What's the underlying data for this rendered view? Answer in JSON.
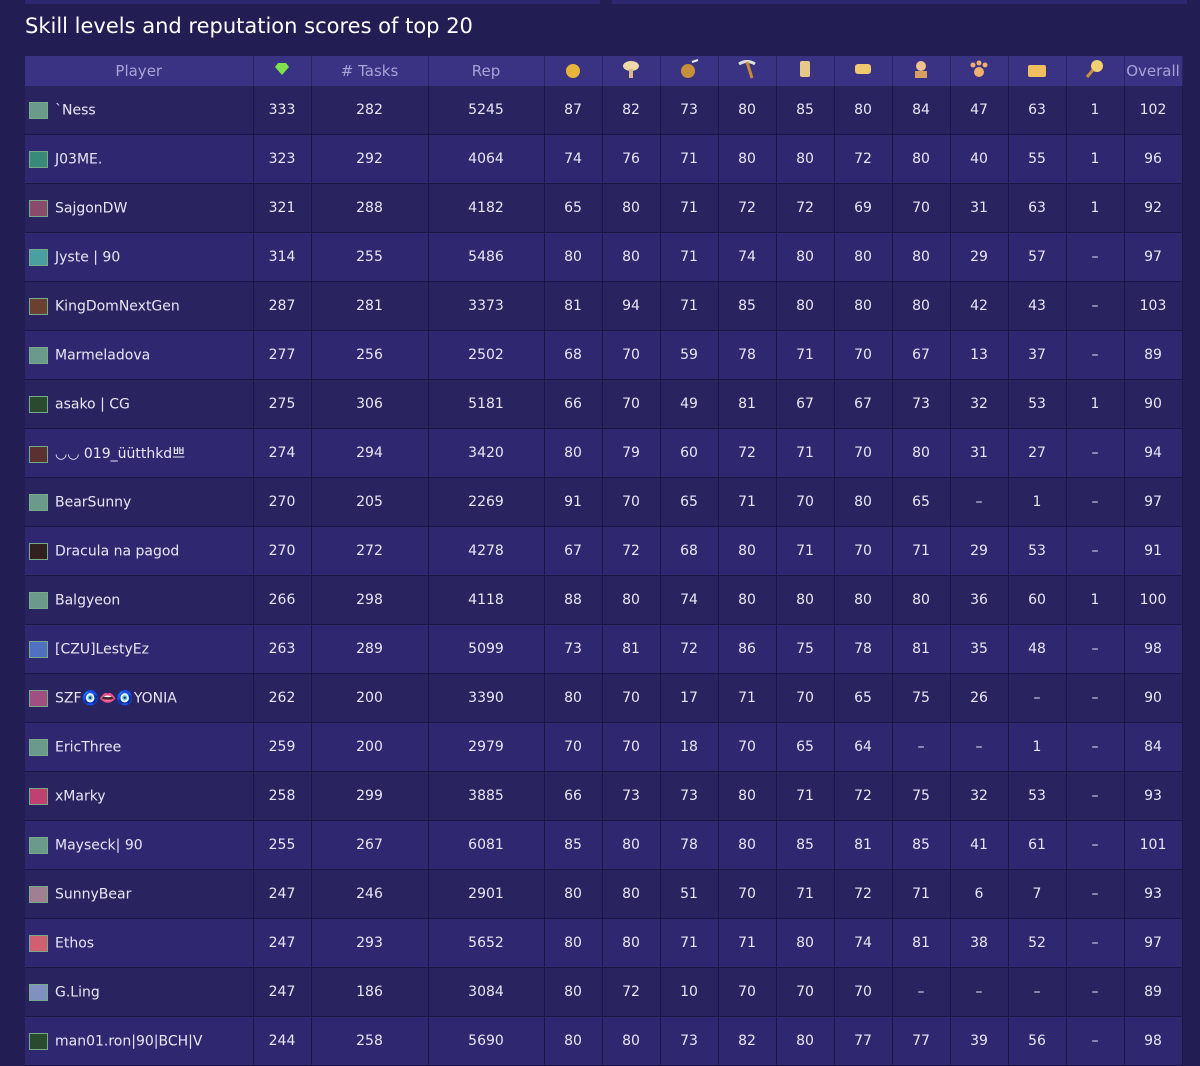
{
  "header": {
    "title": "Skill levels and reputation scores of top 20"
  },
  "table": {
    "columns": {
      "player": "Player",
      "tasks": "# Tasks",
      "rep": "Rep",
      "overall": "Overall"
    },
    "rows": [
      {
        "player": "`Ness",
        "cells": [
          333,
          282,
          5245,
          87,
          82,
          73,
          80,
          85,
          80,
          84,
          47,
          63,
          1,
          102
        ]
      },
      {
        "player": "J03ME.",
        "cells": [
          323,
          292,
          4064,
          74,
          76,
          71,
          80,
          80,
          72,
          80,
          40,
          55,
          1,
          96
        ]
      },
      {
        "player": "SajgonDW",
        "cells": [
          321,
          288,
          4182,
          65,
          80,
          71,
          72,
          72,
          69,
          70,
          31,
          63,
          1,
          92
        ]
      },
      {
        "player": "Jyste | 90",
        "cells": [
          314,
          255,
          5486,
          80,
          80,
          71,
          74,
          80,
          80,
          80,
          29,
          57,
          "–",
          97
        ]
      },
      {
        "player": "KingDomNextGen",
        "cells": [
          287,
          281,
          3373,
          81,
          94,
          71,
          85,
          80,
          80,
          80,
          42,
          43,
          "–",
          103
        ]
      },
      {
        "player": "Marmeladova",
        "cells": [
          277,
          256,
          2502,
          68,
          70,
          59,
          78,
          71,
          70,
          67,
          13,
          37,
          "–",
          89
        ]
      },
      {
        "player": "asako | CG",
        "cells": [
          275,
          306,
          5181,
          66,
          70,
          49,
          81,
          67,
          67,
          73,
          32,
          53,
          1,
          90
        ]
      },
      {
        "player": "◡◡ 019_üütthkd쁘",
        "cells": [
          274,
          294,
          3420,
          80,
          79,
          60,
          72,
          71,
          70,
          80,
          31,
          27,
          "–",
          94
        ]
      },
      {
        "player": "BearSunny",
        "cells": [
          270,
          205,
          2269,
          91,
          70,
          65,
          71,
          70,
          80,
          65,
          "–",
          1,
          "–",
          97
        ]
      },
      {
        "player": "Dracula na pagod",
        "cells": [
          270,
          272,
          4278,
          67,
          72,
          68,
          80,
          71,
          70,
          71,
          29,
          53,
          "–",
          91
        ]
      },
      {
        "player": "Balgyeon",
        "cells": [
          266,
          298,
          4118,
          88,
          80,
          74,
          80,
          80,
          80,
          80,
          36,
          60,
          1,
          100
        ]
      },
      {
        "player": "[CZU]LestyEz",
        "cells": [
          263,
          289,
          5099,
          73,
          81,
          72,
          86,
          75,
          78,
          81,
          35,
          48,
          "–",
          98
        ]
      },
      {
        "player": "SZF🧿👄🧿YONIA",
        "cells": [
          262,
          200,
          3390,
          80,
          70,
          17,
          71,
          70,
          65,
          75,
          26,
          "–",
          "–",
          90
        ]
      },
      {
        "player": "EricThree",
        "cells": [
          259,
          200,
          2979,
          70,
          70,
          18,
          70,
          65,
          64,
          "–",
          "–",
          1,
          "–",
          84
        ]
      },
      {
        "player": "xMarky",
        "cells": [
          258,
          299,
          3885,
          66,
          73,
          73,
          80,
          71,
          72,
          75,
          32,
          53,
          "–",
          93
        ]
      },
      {
        "player": "Mayseck| 90",
        "cells": [
          255,
          267,
          6081,
          85,
          80,
          78,
          80,
          85,
          81,
          85,
          41,
          61,
          "–",
          101
        ]
      },
      {
        "player": "SunnyBear",
        "cells": [
          247,
          246,
          2901,
          80,
          80,
          51,
          70,
          71,
          72,
          71,
          6,
          7,
          "–",
          93
        ]
      },
      {
        "player": "Ethos",
        "cells": [
          247,
          293,
          5652,
          80,
          80,
          71,
          71,
          80,
          74,
          81,
          38,
          52,
          "–",
          97
        ]
      },
      {
        "player": "G.Ling",
        "cells": [
          247,
          186,
          3084,
          80,
          72,
          10,
          70,
          70,
          70,
          "–",
          "–",
          "–",
          "–",
          89
        ]
      },
      {
        "player": "man01.ron|90|BCH|V",
        "cells": [
          244,
          258,
          5690,
          80,
          80,
          73,
          82,
          80,
          77,
          77,
          39,
          56,
          "–",
          98
        ]
      }
    ]
  }
}
